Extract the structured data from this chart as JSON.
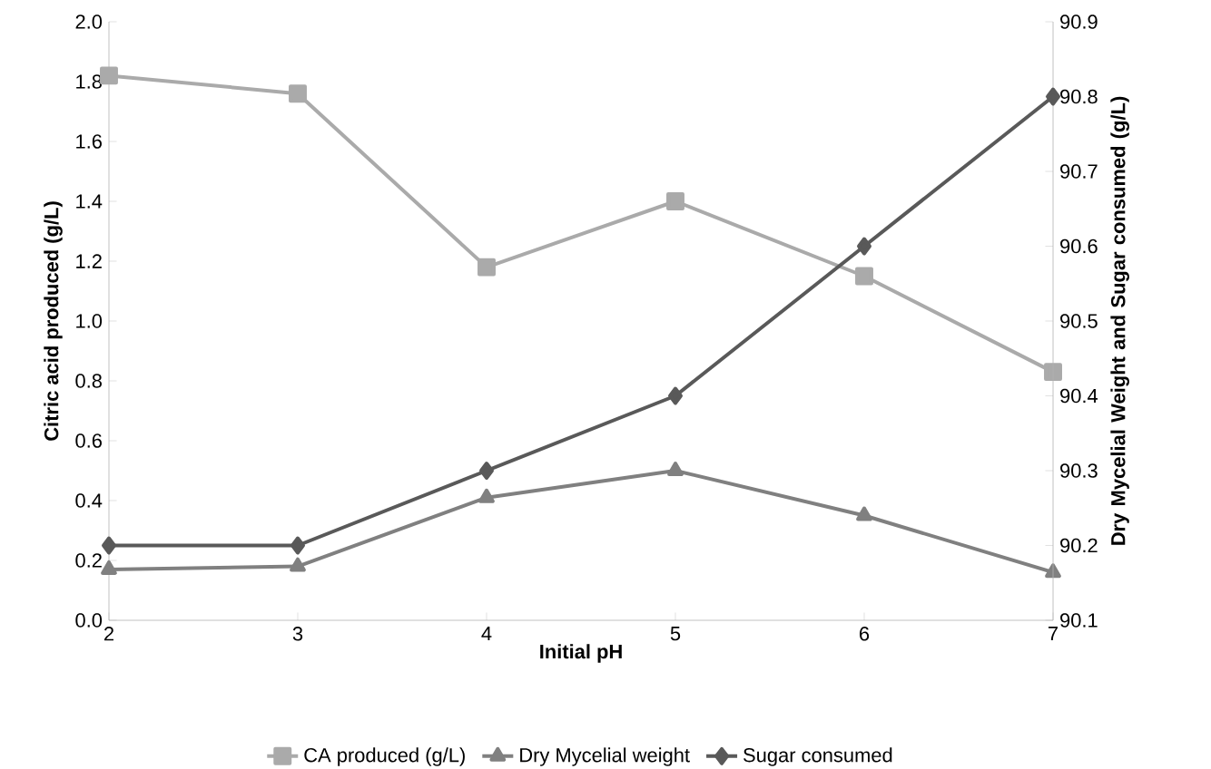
{
  "chart_data": {
    "type": "line",
    "xlabel": "Initial pH",
    "ylabel": "Citric acid produced (g/L)",
    "y2label": "Dry Mycelial Weight and Sugar consumed (g/L)",
    "x": [
      2,
      3,
      4,
      5,
      6,
      7
    ],
    "xlim": [
      2,
      7
    ],
    "xticks": [
      2,
      3,
      4,
      5,
      6,
      7
    ],
    "ylim": [
      0,
      2
    ],
    "yticks": [
      {
        "value": 0,
        "label": "0.0"
      },
      {
        "value": 0.2,
        "label": "0.2"
      },
      {
        "value": 0.4,
        "label": "0.4"
      },
      {
        "value": 0.6,
        "label": "0.6"
      },
      {
        "value": 0.8,
        "label": "0.8"
      },
      {
        "value": 1.0,
        "label": "1.0"
      },
      {
        "value": 1.2,
        "label": "1.2"
      },
      {
        "value": 1.4,
        "label": "1.4"
      },
      {
        "value": 1.6,
        "label": "1.6"
      },
      {
        "value": 1.8,
        "label": "1.8"
      },
      {
        "value": 2.0,
        "label": "2.0"
      }
    ],
    "y2lim": [
      90.1,
      90.9
    ],
    "y2ticks": [
      90.1,
      90.2,
      90.3,
      90.4,
      90.5,
      90.6,
      90.7,
      90.8,
      90.9
    ],
    "legend": "bottom",
    "series": [
      {
        "name": "CA produced (g/L)",
        "color": "#aaaaaa",
        "marker": "square",
        "values": [
          1.82,
          1.76,
          1.18,
          1.4,
          1.15,
          0.83
        ]
      },
      {
        "name": "Dry Mycelial weight",
        "color": "#808080",
        "marker": "triangle",
        "values": [
          0.17,
          0.18,
          0.41,
          0.5,
          0.35,
          0.16
        ]
      },
      {
        "name": "Sugar consumed",
        "color": "#595959",
        "marker": "diamond",
        "axis": "y2",
        "values": [
          90.2,
          90.2,
          90.3,
          90.4,
          90.6,
          90.8
        ]
      }
    ]
  }
}
